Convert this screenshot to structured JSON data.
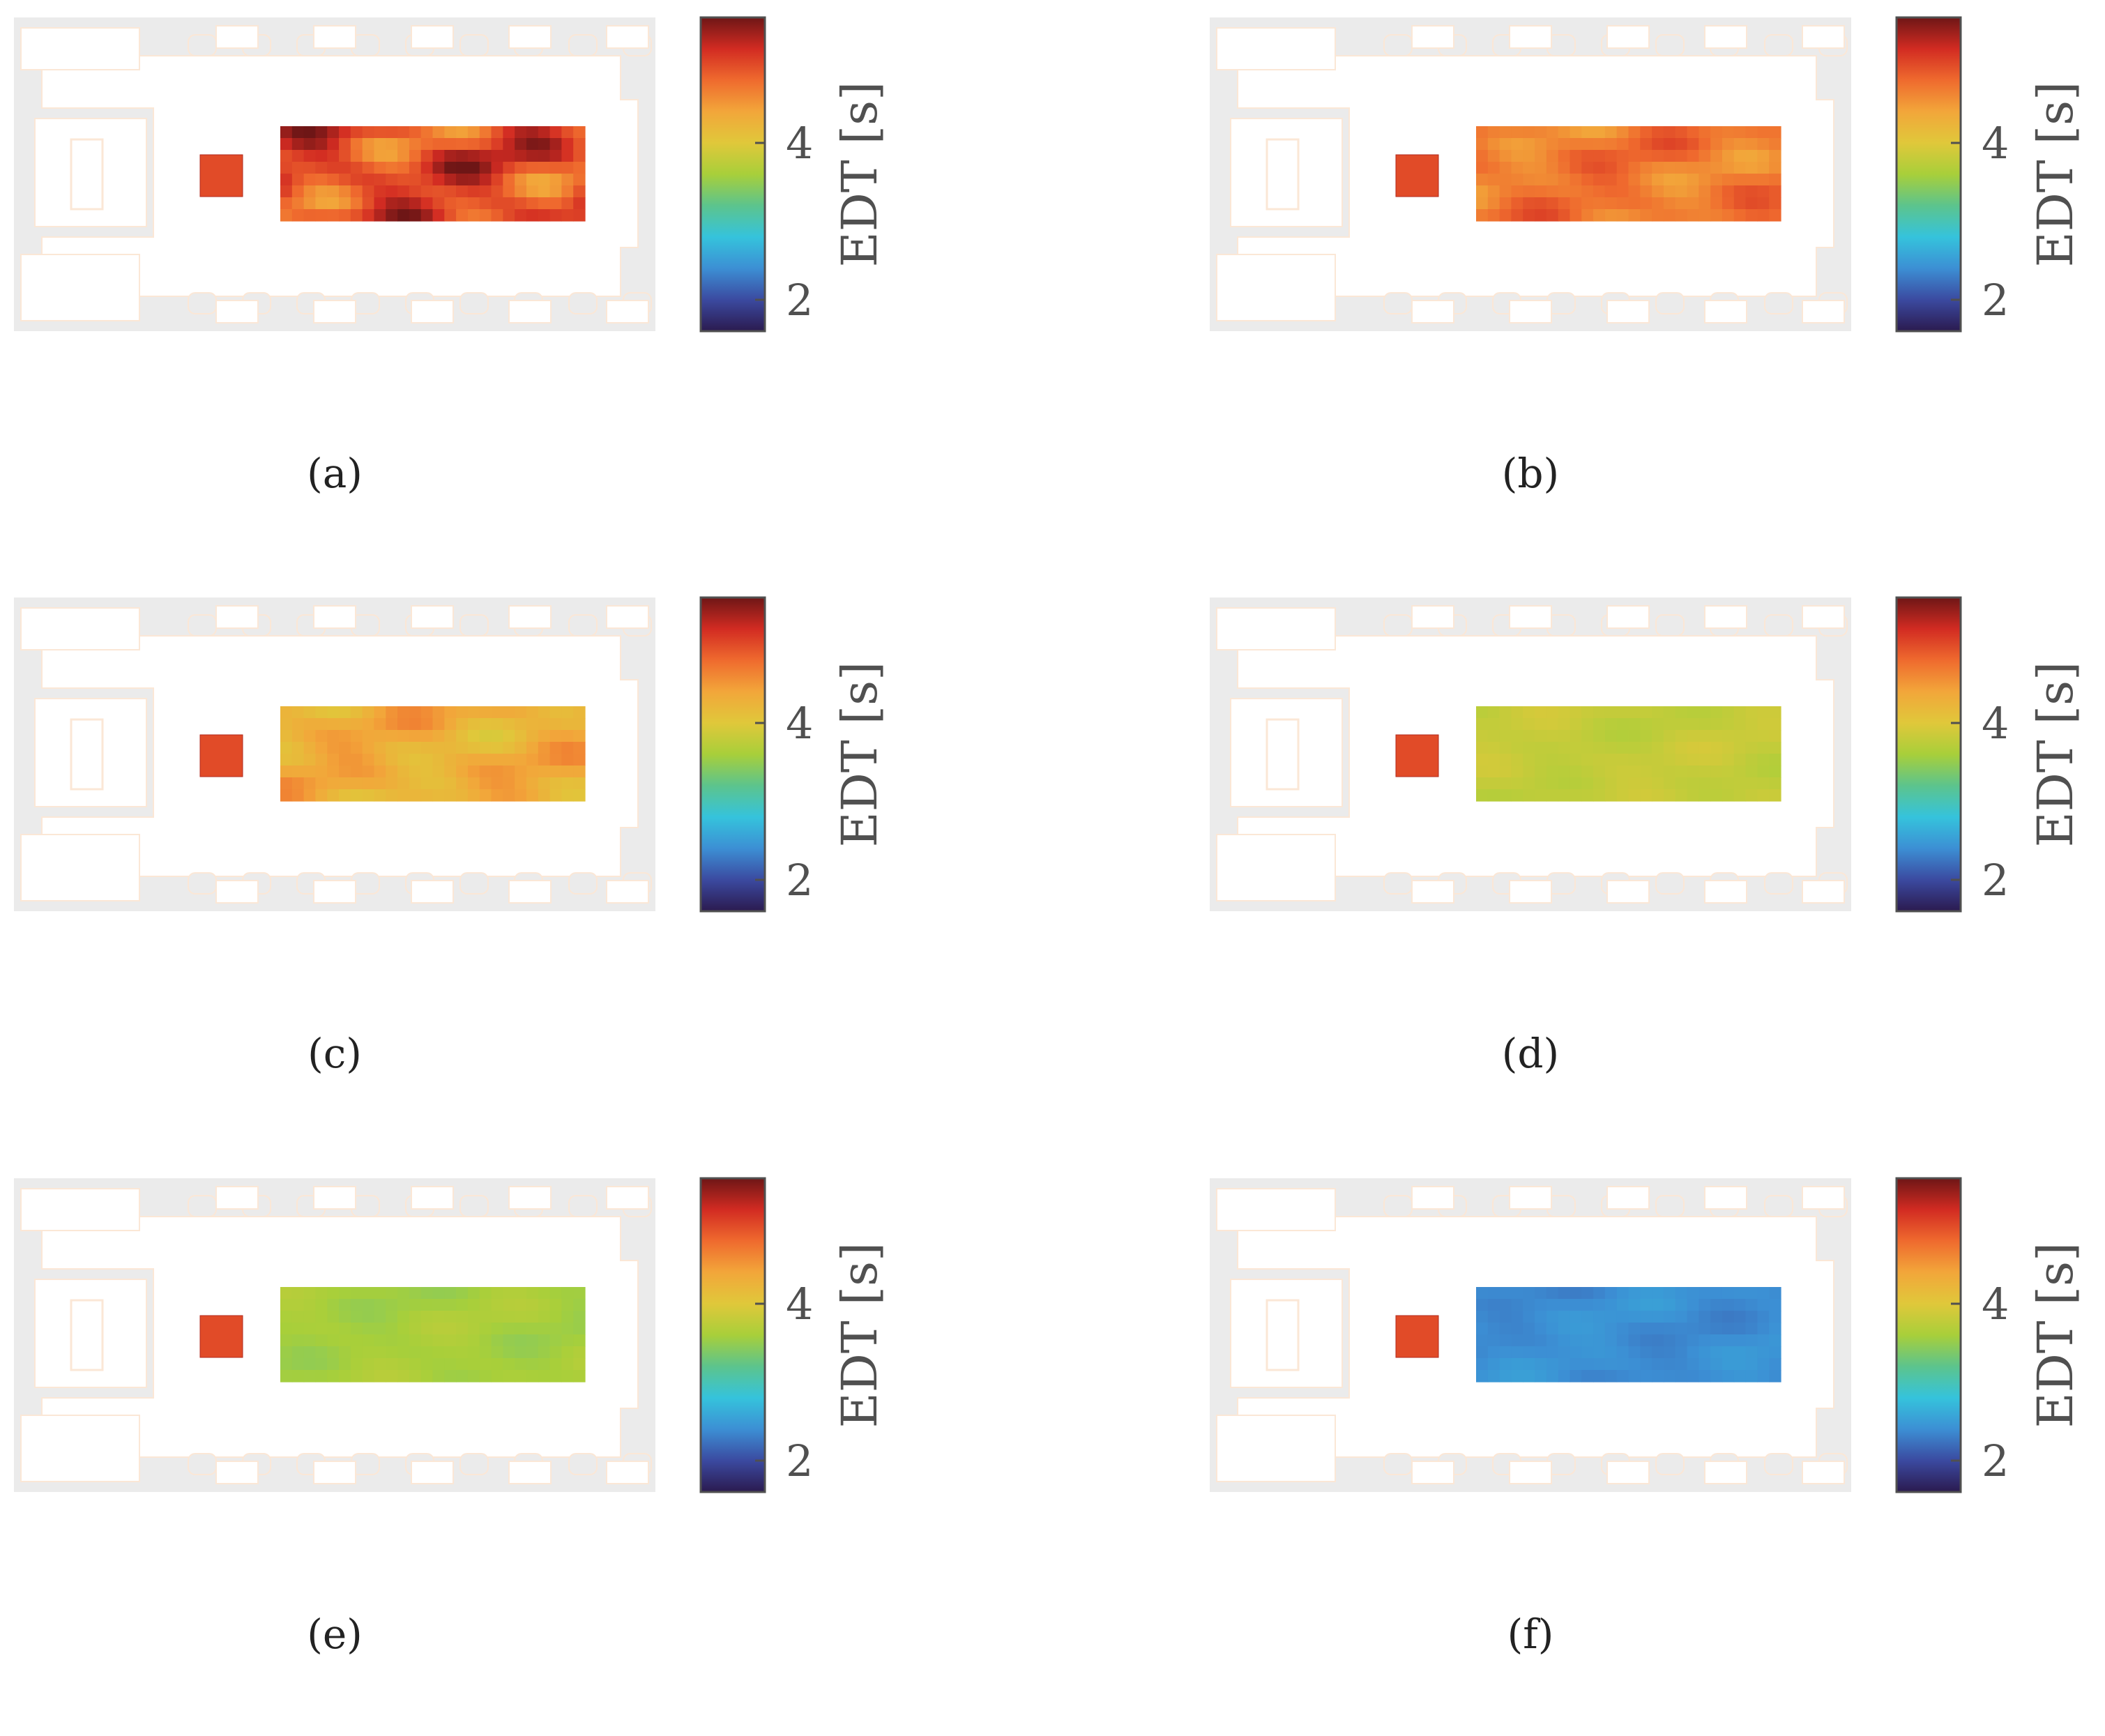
{
  "chart_data": [
    {
      "type": "heatmap",
      "caption": "(a)",
      "colorbar": {
        "label": "EDT [s]",
        "ticks": [
          "2",
          "4"
        ],
        "range": [
          1.6,
          5.6
        ]
      },
      "source": {
        "value": 5.0
      },
      "field": {
        "base": 5.0,
        "variation": "high",
        "pattern": "a"
      }
    },
    {
      "type": "heatmap",
      "caption": "(b)",
      "colorbar": {
        "label": "EDT [s]",
        "ticks": [
          "2",
          "4"
        ],
        "range": [
          1.6,
          5.6
        ]
      },
      "source": {
        "value": 5.0
      },
      "field": {
        "base": 4.7,
        "variation": "medium",
        "pattern": "b"
      }
    },
    {
      "type": "heatmap",
      "caption": "(c)",
      "colorbar": {
        "label": "EDT [s]",
        "ticks": [
          "2",
          "4"
        ],
        "range": [
          1.6,
          5.6
        ]
      },
      "source": {
        "value": 5.0
      },
      "field": {
        "base": 4.3,
        "variation": "medium",
        "pattern": "c"
      }
    },
    {
      "type": "heatmap",
      "caption": "(d)",
      "colorbar": {
        "label": "EDT [s]",
        "ticks": [
          "2",
          "4"
        ],
        "range": [
          1.6,
          5.6
        ]
      },
      "source": {
        "value": 5.0
      },
      "field": {
        "base": 3.8,
        "variation": "low",
        "pattern": "d"
      }
    },
    {
      "type": "heatmap",
      "caption": "(e)",
      "colorbar": {
        "label": "EDT [s]",
        "ticks": [
          "2",
          "4"
        ],
        "range": [
          1.6,
          5.6
        ]
      },
      "source": {
        "value": 5.0
      },
      "field": {
        "base": 3.6,
        "variation": "low",
        "pattern": "e"
      }
    },
    {
      "type": "heatmap",
      "caption": "(f)",
      "colorbar": {
        "label": "EDT [s]",
        "ticks": [
          "2",
          "4"
        ],
        "range": [
          1.6,
          5.6
        ]
      },
      "source": {
        "value": 5.0
      },
      "field": {
        "base": 2.4,
        "variation": "low",
        "pattern": "f"
      }
    }
  ],
  "colormap": [
    "#2b1a4f",
    "#3b4aa0",
    "#3c8fd4",
    "#35c3dc",
    "#5cc48d",
    "#a8cf3a",
    "#e0c83a",
    "#f2a63a",
    "#ef6a2e",
    "#d22b22",
    "#6e1616"
  ]
}
